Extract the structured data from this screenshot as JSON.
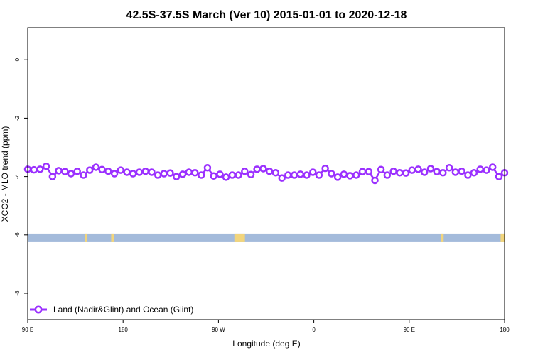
{
  "chart_data": {
    "type": "line",
    "title": "42.5S-37.5S March (Ver 10)   2015-01-01 to 2020-12-18",
    "xlabel": "Longitude (deg E)",
    "ylabel": "XCO2 - MLO trend (ppm)",
    "xlim": [
      90,
      450
    ],
    "ylim": [
      -8.9,
      1.1
    ],
    "x_ticks": [
      {
        "value": 90,
        "label": "90 E"
      },
      {
        "value": 162,
        "label": "180"
      },
      {
        "value": 234,
        "label": "90 W"
      },
      {
        "value": 306,
        "label": "0"
      },
      {
        "value": 378,
        "label": "90 E"
      },
      {
        "value": 450,
        "label": "180"
      }
    ],
    "y_ticks": [
      {
        "value": 0,
        "label": "0"
      },
      {
        "value": -2,
        "label": "-2"
      },
      {
        "value": -4,
        "label": "-4"
      },
      {
        "value": -6,
        "label": "-6"
      },
      {
        "value": -8,
        "label": "-8"
      }
    ],
    "legend_position": "bottom-left",
    "series": [
      {
        "name": "Land (Nadir&Glint) and Ocean (Glint)",
        "color": "#9b30ff",
        "marker": "open-circle",
        "x": [
          90.0,
          94.7,
          99.3,
          104.0,
          108.7,
          113.4,
          118.1,
          122.7,
          127.4,
          132.1,
          136.8,
          141.5,
          146.1,
          150.8,
          155.5,
          160.2,
          164.9,
          169.5,
          174.2,
          178.9,
          183.6,
          188.3,
          192.9,
          197.6,
          202.3,
          207.0,
          211.7,
          216.3,
          221.0,
          225.7,
          230.4,
          235.1,
          239.7,
          244.4,
          249.1,
          253.8,
          258.5,
          263.1,
          267.8,
          272.5,
          277.2,
          281.9,
          286.5,
          291.2,
          295.9,
          300.6,
          305.3,
          309.9,
          314.6,
          319.3,
          324.0,
          328.7,
          333.3,
          338.0,
          342.7,
          347.4,
          352.1,
          356.7,
          361.4,
          366.1,
          370.8,
          375.5,
          380.1,
          384.8,
          389.5,
          394.2,
          398.9,
          403.5,
          408.2,
          412.9,
          417.6,
          422.3,
          426.9,
          431.6,
          436.3,
          441.0,
          445.7,
          450.0
        ],
        "y": [
          -3.75,
          -3.77,
          -3.75,
          -3.65,
          -4.0,
          -3.8,
          -3.83,
          -3.9,
          -3.82,
          -3.95,
          -3.78,
          -3.68,
          -3.76,
          -3.82,
          -3.9,
          -3.78,
          -3.85,
          -3.9,
          -3.85,
          -3.82,
          -3.85,
          -3.95,
          -3.9,
          -3.88,
          -4.0,
          -3.92,
          -3.85,
          -3.87,
          -3.95,
          -3.7,
          -3.98,
          -3.92,
          -4.02,
          -3.95,
          -3.95,
          -3.82,
          -3.93,
          -3.75,
          -3.73,
          -3.82,
          -3.87,
          -4.05,
          -3.95,
          -3.95,
          -3.92,
          -3.95,
          -3.85,
          -3.95,
          -3.72,
          -3.9,
          -4.02,
          -3.92,
          -3.97,
          -3.95,
          -3.83,
          -3.83,
          -4.13,
          -3.76,
          -3.95,
          -3.82,
          -3.87,
          -3.88,
          -3.78,
          -3.75,
          -3.85,
          -3.73,
          -3.83,
          -3.87,
          -3.7,
          -3.85,
          -3.82,
          -3.95,
          -3.87,
          -3.75,
          -3.78,
          -3.68,
          -4.0,
          -3.87
        ]
      }
    ],
    "surface_band": {
      "y": -6.1,
      "ocean_color": "#a4bbdb",
      "land_color": "#f2d57c",
      "land_segments": [
        [
          133,
          135
        ],
        [
          153,
          155
        ],
        [
          246,
          254
        ],
        [
          402,
          404
        ],
        [
          447,
          450
        ]
      ]
    }
  }
}
